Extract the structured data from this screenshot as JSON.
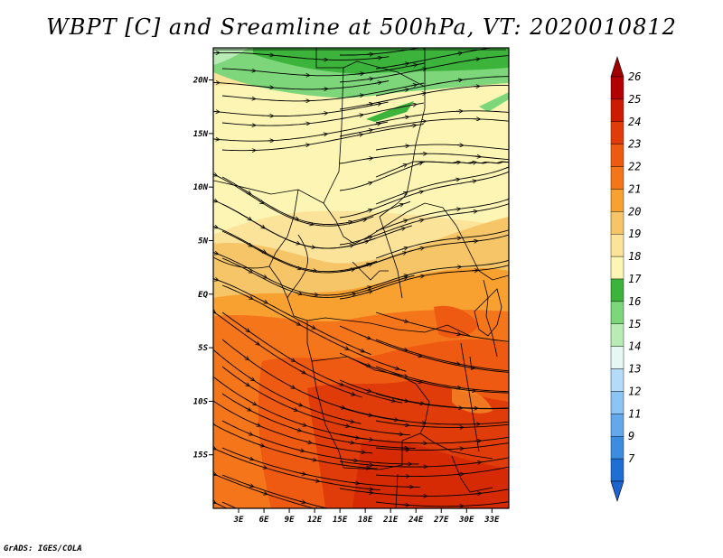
{
  "title": "WBPT [C] and Sreamline at 500hPa, VT: 2020010812",
  "footer": "GrADS: IGES/COLA",
  "map": {
    "lon_range": [
      0,
      35
    ],
    "lat_range": [
      -20,
      23
    ],
    "lat_ticks": [
      {
        "value": 20,
        "label": "20N"
      },
      {
        "value": 15,
        "label": "15N"
      },
      {
        "value": 10,
        "label": "10N"
      },
      {
        "value": 5,
        "label": "5N"
      },
      {
        "value": 0,
        "label": "EQ"
      },
      {
        "value": -5,
        "label": "5S"
      },
      {
        "value": -10,
        "label": "10S"
      },
      {
        "value": -15,
        "label": "15S"
      }
    ],
    "lon_ticks": [
      {
        "value": 3,
        "label": "3E"
      },
      {
        "value": 6,
        "label": "6E"
      },
      {
        "value": 9,
        "label": "9E"
      },
      {
        "value": 12,
        "label": "12E"
      },
      {
        "value": 15,
        "label": "15E"
      },
      {
        "value": 18,
        "label": "18E"
      },
      {
        "value": 21,
        "label": "21E"
      },
      {
        "value": 24,
        "label": "24E"
      },
      {
        "value": 27,
        "label": "27E"
      },
      {
        "value": 30,
        "label": "30E"
      },
      {
        "value": 33,
        "label": "33E"
      }
    ]
  },
  "colorbar": {
    "levels": [
      {
        "label": "26",
        "color": "#b30000"
      },
      {
        "label": "25",
        "color": "#cc1b00"
      },
      {
        "label": "24",
        "color": "#e03c0a"
      },
      {
        "label": "23",
        "color": "#ee5a12"
      },
      {
        "label": "22",
        "color": "#f5751b"
      },
      {
        "label": "21",
        "color": "#f8a030"
      },
      {
        "label": "20",
        "color": "#f6c568"
      },
      {
        "label": "19",
        "color": "#fce39a"
      },
      {
        "label": "18",
        "color": "#fdf5b4"
      },
      {
        "label": "17",
        "color": "#3cb43c"
      },
      {
        "label": "16",
        "color": "#7ed67a"
      },
      {
        "label": "15",
        "color": "#b8ecb4"
      },
      {
        "label": "14",
        "color": "#e6f8f4"
      },
      {
        "label": "13",
        "color": "#b4dcf8"
      },
      {
        "label": "12",
        "color": "#8cc4f4"
      },
      {
        "label": "11",
        "color": "#64a8ec"
      },
      {
        "label": "9",
        "color": "#3c8ce0"
      },
      {
        "label": "7",
        "color": "#1e6ed4"
      }
    ],
    "top_color": "#a00000",
    "bottom_color": "#1e64d0"
  }
}
